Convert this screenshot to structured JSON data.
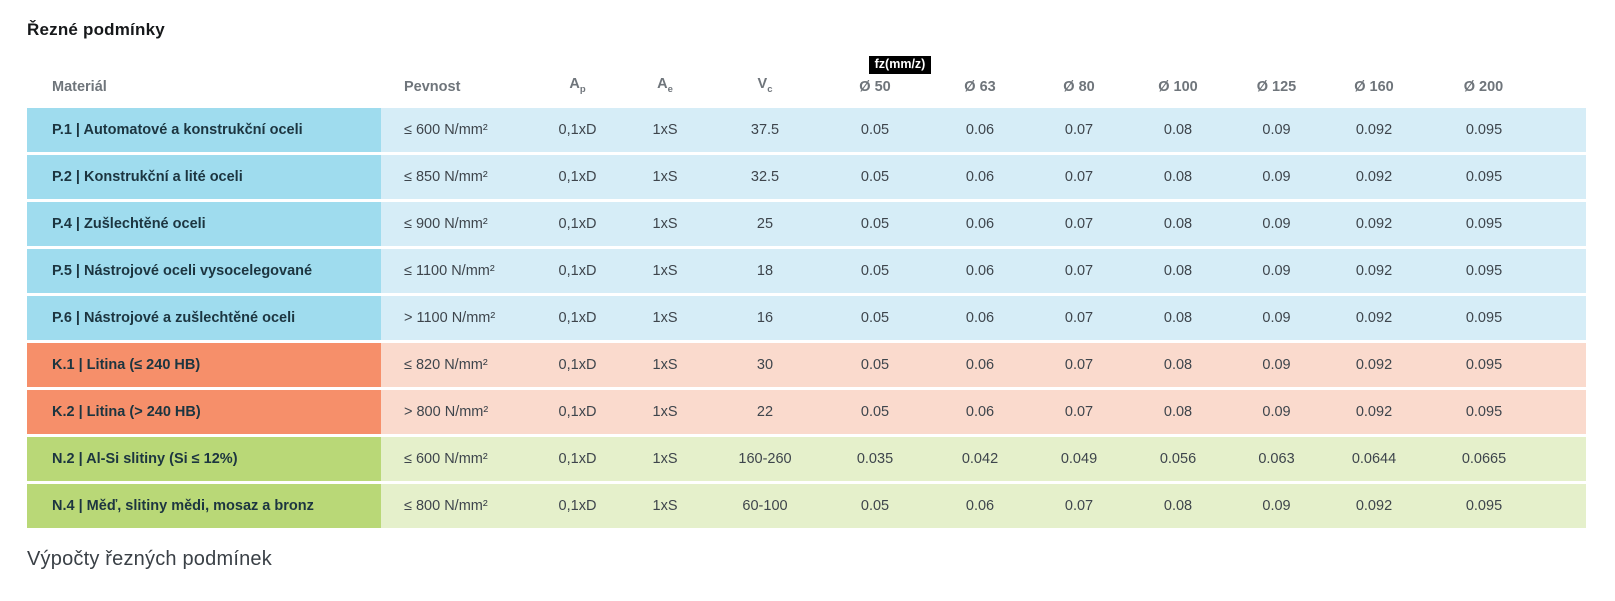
{
  "page": {
    "title": "Řezné podmínky",
    "footer_heading": "Výpočty řezných podmínek"
  },
  "table": {
    "fz_badge": "fz(mm/z)",
    "headers": {
      "material": "Materiál",
      "strength": "Pevnost",
      "ap": {
        "base": "A",
        "sub": "p"
      },
      "ae": {
        "base": "A",
        "sub": "e"
      },
      "vc": {
        "base": "V",
        "sub": "c"
      },
      "diameters": [
        "Ø 50",
        "Ø 63",
        "Ø 80",
        "Ø 100",
        "Ø 125",
        "Ø 160",
        "Ø 200"
      ]
    },
    "rows": [
      {
        "group": "steel",
        "material": "P.1 | Automatové a konstrukční oceli",
        "strength": "≤ 600 N/mm²",
        "ap": "0,1xD",
        "ae": "1xS",
        "vc": "37.5",
        "fz": [
          "0.05",
          "0.06",
          "0.07",
          "0.08",
          "0.09",
          "0.092",
          "0.095"
        ]
      },
      {
        "group": "steel",
        "material": "P.2 | Konstrukční a lité oceli",
        "strength": "≤ 850 N/mm²",
        "ap": "0,1xD",
        "ae": "1xS",
        "vc": "32.5",
        "fz": [
          "0.05",
          "0.06",
          "0.07",
          "0.08",
          "0.09",
          "0.092",
          "0.095"
        ]
      },
      {
        "group": "steel",
        "material": "P.4 | Zušlechtěné oceli",
        "strength": "≤ 900 N/mm²",
        "ap": "0,1xD",
        "ae": "1xS",
        "vc": "25",
        "fz": [
          "0.05",
          "0.06",
          "0.07",
          "0.08",
          "0.09",
          "0.092",
          "0.095"
        ]
      },
      {
        "group": "steel",
        "material": "P.5 | Nástrojové oceli vysocelegované",
        "strength": "≤ 1100 N/mm²",
        "ap": "0,1xD",
        "ae": "1xS",
        "vc": "18",
        "fz": [
          "0.05",
          "0.06",
          "0.07",
          "0.08",
          "0.09",
          "0.092",
          "0.095"
        ]
      },
      {
        "group": "steel",
        "material": "P.6 | Nástrojové a zušlechtěné oceli",
        "strength": "> 1100 N/mm²",
        "ap": "0,1xD",
        "ae": "1xS",
        "vc": "16",
        "fz": [
          "0.05",
          "0.06",
          "0.07",
          "0.08",
          "0.09",
          "0.092",
          "0.095"
        ]
      },
      {
        "group": "cast",
        "material": "K.1 | Litina (≤ 240 HB)",
        "strength": "≤ 820 N/mm²",
        "ap": "0,1xD",
        "ae": "1xS",
        "vc": "30",
        "fz": [
          "0.05",
          "0.06",
          "0.07",
          "0.08",
          "0.09",
          "0.092",
          "0.095"
        ]
      },
      {
        "group": "cast",
        "material": "K.2 | Litina (> 240 HB)",
        "strength": "> 800 N/mm²",
        "ap": "0,1xD",
        "ae": "1xS",
        "vc": "22",
        "fz": [
          "0.05",
          "0.06",
          "0.07",
          "0.08",
          "0.09",
          "0.092",
          "0.095"
        ]
      },
      {
        "group": "nonferrous",
        "material": "N.2 | Al-Si slitiny (Si ≤ 12%)",
        "strength": "≤ 600 N/mm²",
        "ap": "0,1xD",
        "ae": "1xS",
        "vc": "160-260",
        "fz": [
          "0.035",
          "0.042",
          "0.049",
          "0.056",
          "0.063",
          "0.0644",
          "0.0665"
        ]
      },
      {
        "group": "nonferrous",
        "material": "N.4 | Měď, slitiny mědi, mosaz a bronz",
        "strength": "≤ 800 N/mm²",
        "ap": "0,1xD",
        "ae": "1xS",
        "vc": "60-100",
        "fz": [
          "0.05",
          "0.06",
          "0.07",
          "0.08",
          "0.09",
          "0.092",
          "0.095"
        ]
      }
    ],
    "colors": {
      "steel_label": "#9fdcee",
      "steel_row": "#d6edf7",
      "cast_label": "#f68f6a",
      "cast_row": "#fadacd",
      "nonferrous_label": "#b9d877",
      "nonferrous_row": "#e5f0cb",
      "badge_bg": "#000000",
      "badge_text": "#ffffff"
    }
  }
}
